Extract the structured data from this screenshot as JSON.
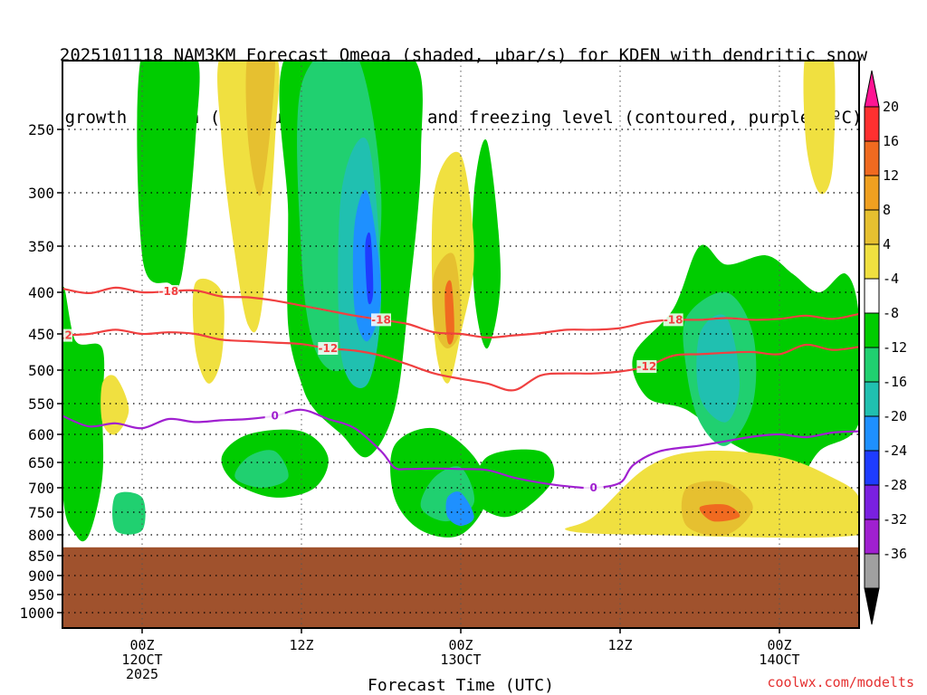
{
  "title_line1": "2025101118 NAM3KM Forecast Omega (shaded, μbar/s) for KDEN with dendritic snow",
  "title_line2": "growth region (contoured, red, ºC) and freezing level (contoured, purple, ºC)",
  "watermark": "coolwx.com/modelts",
  "chart_data": {
    "type": "heatmap",
    "xlabel": "Forecast Time (UTC)",
    "y_ticks": [
      250,
      300,
      350,
      400,
      450,
      500,
      550,
      600,
      650,
      700,
      750,
      800,
      850,
      900,
      950,
      1000
    ],
    "x_ticks": [
      {
        "hour": 6,
        "line1": "00Z",
        "line2": "12OCT",
        "line3": "2025"
      },
      {
        "hour": 18,
        "line1": "12Z",
        "line2": "",
        "line3": ""
      },
      {
        "hour": 30,
        "line1": "00Z",
        "line2": "13OCT",
        "line3": ""
      },
      {
        "hour": 42,
        "line1": "12Z",
        "line2": "",
        "line3": ""
      },
      {
        "hour": 54,
        "line1": "00Z",
        "line2": "14OCT",
        "line3": ""
      }
    ],
    "x_range": [
      0,
      60
    ],
    "y_range_hPa": [
      200,
      1050
    ],
    "colorbar": {
      "labels": [
        "20",
        "16",
        "12",
        "8",
        "4",
        "-4",
        "-8",
        "-12",
        "-16",
        "-20",
        "-24",
        "-28",
        "-32",
        "-36"
      ],
      "colors": [
        "#ff1493",
        "#ff3030",
        "#f06a20",
        "#f0a020",
        "#e6c030",
        "#f0e040",
        "#ffffff",
        "#00cc00",
        "#20d070",
        "#20c0b0",
        "#1e90ff",
        "#1e3cff",
        "#7a20e0",
        "#a020d0",
        "#a0a0a0",
        "#000000"
      ]
    },
    "dgz_top_18": {
      "label": "-18",
      "color": "#f04040",
      "points": [
        [
          0,
          396
        ],
        [
          2,
          401
        ],
        [
          4,
          395
        ],
        [
          6,
          400
        ],
        [
          8,
          399
        ],
        [
          10,
          398
        ],
        [
          12,
          405
        ],
        [
          14,
          406
        ],
        [
          16,
          410
        ],
        [
          18,
          416
        ],
        [
          20,
          422
        ],
        [
          22,
          428
        ],
        [
          24,
          433
        ],
        [
          26,
          438
        ],
        [
          28,
          448
        ],
        [
          30,
          450
        ],
        [
          32,
          455
        ],
        [
          34,
          452
        ],
        [
          36,
          449
        ],
        [
          38,
          445
        ],
        [
          40,
          445
        ],
        [
          42,
          443
        ],
        [
          44,
          436
        ],
        [
          46,
          433
        ],
        [
          48,
          433
        ],
        [
          50,
          431
        ],
        [
          52,
          433
        ],
        [
          54,
          432
        ],
        [
          56,
          428
        ],
        [
          58,
          432
        ],
        [
          60,
          426
        ]
      ]
    },
    "dgz_bottom_12": {
      "label": "-12",
      "color": "#f04040",
      "points": [
        [
          0,
          452
        ],
        [
          2,
          450
        ],
        [
          4,
          445
        ],
        [
          6,
          450
        ],
        [
          8,
          448
        ],
        [
          10,
          450
        ],
        [
          12,
          458
        ],
        [
          14,
          460
        ],
        [
          16,
          462
        ],
        [
          18,
          464
        ],
        [
          20,
          470
        ],
        [
          22,
          473
        ],
        [
          24,
          480
        ],
        [
          26,
          492
        ],
        [
          28,
          505
        ],
        [
          30,
          513
        ],
        [
          32,
          520
        ],
        [
          34,
          530
        ],
        [
          36,
          508
        ],
        [
          38,
          505
        ],
        [
          40,
          505
        ],
        [
          42,
          502
        ],
        [
          44,
          495
        ],
        [
          46,
          480
        ],
        [
          48,
          478
        ],
        [
          50,
          476
        ],
        [
          52,
          475
        ],
        [
          54,
          478
        ],
        [
          56,
          465
        ],
        [
          58,
          472
        ],
        [
          60,
          468
        ]
      ]
    },
    "freezing_level_0": {
      "label": "0",
      "color": "#a020d0",
      "points": [
        [
          0,
          570
        ],
        [
          2,
          587
        ],
        [
          4,
          582
        ],
        [
          6,
          590
        ],
        [
          8,
          575
        ],
        [
          10,
          580
        ],
        [
          12,
          577
        ],
        [
          14,
          575
        ],
        [
          16,
          570
        ],
        [
          18,
          560
        ],
        [
          20,
          575
        ],
        [
          22,
          590
        ],
        [
          24,
          630
        ],
        [
          25,
          660
        ],
        [
          26,
          663
        ],
        [
          28,
          662
        ],
        [
          30,
          663
        ],
        [
          32,
          665
        ],
        [
          34,
          680
        ],
        [
          36,
          690
        ],
        [
          38,
          697
        ],
        [
          40,
          700
        ],
        [
          42,
          690
        ],
        [
          43,
          655
        ],
        [
          45,
          630
        ],
        [
          48,
          620
        ],
        [
          50,
          612
        ],
        [
          52,
          604
        ],
        [
          54,
          600
        ],
        [
          56,
          605
        ],
        [
          58,
          597
        ],
        [
          60,
          595
        ]
      ]
    },
    "omega_regions": [
      {
        "level": -8,
        "color": "#00cc00",
        "points": [
          [
            6,
            200
          ],
          [
            10,
            200
          ],
          [
            10,
            260
          ],
          [
            9,
            380
          ],
          [
            8,
            390
          ],
          [
            6,
            360
          ]
        ]
      },
      {
        "level": -8,
        "color": "#00cc00",
        "points": [
          [
            17,
            200
          ],
          [
            26,
            200
          ],
          [
            27,
            270
          ],
          [
            26,
            420
          ],
          [
            25,
            560
          ],
          [
            23,
            640
          ],
          [
            21,
            600
          ],
          [
            19,
            560
          ],
          [
            18,
            520
          ],
          [
            17,
            440
          ],
          [
            17,
            320
          ]
        ]
      },
      {
        "level": -8,
        "color": "#00cc00",
        "points": [
          [
            14,
            600
          ],
          [
            18,
            595
          ],
          [
            20,
            640
          ],
          [
            19,
            700
          ],
          [
            16,
            720
          ],
          [
            13,
            690
          ],
          [
            12,
            640
          ]
        ]
      },
      {
        "level": -8,
        "color": "#00cc00",
        "points": [
          [
            25,
            620
          ],
          [
            28,
            590
          ],
          [
            31,
            640
          ],
          [
            32,
            720
          ],
          [
            30,
            800
          ],
          [
            27,
            790
          ],
          [
            25,
            720
          ]
        ]
      },
      {
        "level": -8,
        "color": "#00cc00",
        "points": [
          [
            32,
            640
          ],
          [
            36,
            630
          ],
          [
            37,
            680
          ],
          [
            35,
            740
          ],
          [
            33,
            760
          ],
          [
            31,
            720
          ]
        ]
      },
      {
        "level": -8,
        "color": "#00cc00",
        "points": [
          [
            31,
            300
          ],
          [
            32,
            260
          ],
          [
            33,
            380
          ],
          [
            32,
            470
          ],
          [
            31,
            400
          ]
        ]
      },
      {
        "level": -8,
        "color": "#00cc00",
        "points": [
          [
            43,
            480
          ],
          [
            46,
            420
          ],
          [
            48,
            350
          ],
          [
            50,
            370
          ],
          [
            53,
            360
          ],
          [
            55,
            380
          ],
          [
            57,
            400
          ],
          [
            59,
            380
          ],
          [
            60,
            430
          ],
          [
            60,
            580
          ],
          [
            57,
            630
          ],
          [
            55,
            700
          ],
          [
            53,
            650
          ],
          [
            50,
            610
          ],
          [
            47,
            560
          ],
          [
            44,
            540
          ]
        ]
      },
      {
        "level": -8,
        "color": "#00cc00",
        "points": [
          [
            1,
            460
          ],
          [
            3,
            470
          ],
          [
            3,
            560
          ],
          [
            3,
            680
          ],
          [
            2,
            800
          ],
          [
            1,
            800
          ],
          [
            0,
            700
          ],
          [
            0,
            400
          ]
        ]
      },
      {
        "level": -12,
        "color": "#20d070",
        "points": [
          [
            18,
            220
          ],
          [
            22,
            200
          ],
          [
            24,
            300
          ],
          [
            23,
            440
          ],
          [
            21,
            500
          ],
          [
            19,
            470
          ],
          [
            18,
            360
          ]
        ]
      },
      {
        "level": -12,
        "color": "#20d070",
        "points": [
          [
            14,
            640
          ],
          [
            16,
            630
          ],
          [
            17,
            680
          ],
          [
            15,
            700
          ],
          [
            13,
            680
          ]
        ]
      },
      {
        "level": -12,
        "color": "#20d070",
        "points": [
          [
            28,
            680
          ],
          [
            30,
            660
          ],
          [
            31,
            730
          ],
          [
            29,
            770
          ],
          [
            27,
            740
          ]
        ]
      },
      {
        "level": -12,
        "color": "#20d070",
        "points": [
          [
            47,
            430
          ],
          [
            50,
            400
          ],
          [
            52,
            450
          ],
          [
            52,
            550
          ],
          [
            50,
            620
          ],
          [
            48,
            580
          ],
          [
            47,
            500
          ]
        ]
      },
      {
        "level": -12,
        "color": "#20d070",
        "points": [
          [
            4,
            715
          ],
          [
            6,
            720
          ],
          [
            6,
            790
          ],
          [
            4,
            790
          ]
        ]
      },
      {
        "level": -16,
        "color": "#20c0b0",
        "points": [
          [
            21,
            300
          ],
          [
            23,
            260
          ],
          [
            24,
            400
          ],
          [
            23,
            520
          ],
          [
            21,
            480
          ]
        ]
      },
      {
        "level": -16,
        "color": "#20c0b0",
        "points": [
          [
            48,
            450
          ],
          [
            50,
            430
          ],
          [
            51,
            520
          ],
          [
            50,
            580
          ],
          [
            48,
            540
          ]
        ]
      },
      {
        "level": -20,
        "color": "#1e90ff",
        "points": [
          [
            22,
            330
          ],
          [
            23,
            300
          ],
          [
            24,
            400
          ],
          [
            23,
            460
          ],
          [
            22,
            420
          ]
        ]
      },
      {
        "level": -20,
        "color": "#1e90ff",
        "points": [
          [
            29,
            720
          ],
          [
            30,
            710
          ],
          [
            31,
            760
          ],
          [
            30,
            780
          ],
          [
            29,
            760
          ]
        ]
      },
      {
        "level": -24,
        "color": "#1e3cff",
        "points": [
          [
            22.8,
            350
          ],
          [
            23.2,
            340
          ],
          [
            23.4,
            400
          ],
          [
            23,
            410
          ]
        ]
      },
      {
        "level": 4,
        "color": "#f0e040",
        "points": [
          [
            12,
            200
          ],
          [
            16,
            200
          ],
          [
            16,
            260
          ],
          [
            15,
            420
          ],
          [
            14,
            440
          ],
          [
            13,
            360
          ],
          [
            12,
            260
          ]
        ]
      },
      {
        "level": 4,
        "color": "#f0e040",
        "points": [
          [
            10,
            390
          ],
          [
            12,
            400
          ],
          [
            12,
            480
          ],
          [
            11,
            520
          ],
          [
            10,
            470
          ]
        ]
      },
      {
        "level": 4,
        "color": "#f0e040",
        "points": [
          [
            28,
            300
          ],
          [
            30,
            270
          ],
          [
            31,
            360
          ],
          [
            30,
            450
          ],
          [
            29,
            520
          ],
          [
            28,
            450
          ]
        ]
      },
      {
        "level": 4,
        "color": "#f0e040",
        "points": [
          [
            44,
            660
          ],
          [
            48,
            630
          ],
          [
            54,
            640
          ],
          [
            58,
            680
          ],
          [
            60,
            720
          ],
          [
            60,
            800
          ],
          [
            44,
            800
          ],
          [
            38,
            790
          ],
          [
            40,
            760
          ]
        ]
      },
      {
        "level": 4,
        "color": "#f0e040",
        "points": [
          [
            3,
            520
          ],
          [
            4,
            510
          ],
          [
            5,
            560
          ],
          [
            4,
            600
          ],
          [
            3,
            580
          ]
        ]
      },
      {
        "level": 4,
        "color": "#f0e040",
        "points": [
          [
            56,
            200
          ],
          [
            58,
            200
          ],
          [
            58,
            280
          ],
          [
            57,
            300
          ],
          [
            56,
            260
          ]
        ]
      },
      {
        "level": 8,
        "color": "#e6c030",
        "points": [
          [
            14,
            200
          ],
          [
            16,
            200
          ],
          [
            15,
            300
          ],
          [
            14,
            260
          ]
        ]
      },
      {
        "level": 8,
        "color": "#e6c030",
        "points": [
          [
            28,
            380
          ],
          [
            29.5,
            360
          ],
          [
            30,
            440
          ],
          [
            29,
            470
          ],
          [
            28,
            440
          ]
        ]
      },
      {
        "level": 8,
        "color": "#e6c030",
        "points": [
          [
            47,
            700
          ],
          [
            50,
            690
          ],
          [
            52,
            740
          ],
          [
            50,
            800
          ],
          [
            47,
            780
          ]
        ]
      },
      {
        "level": 12,
        "color": "#f06a20",
        "points": [
          [
            28.8,
            400
          ],
          [
            29.3,
            390
          ],
          [
            29.5,
            450
          ],
          [
            29,
            460
          ]
        ]
      },
      {
        "level": 12,
        "color": "#f06a20",
        "points": [
          [
            48,
            740
          ],
          [
            50,
            735
          ],
          [
            51,
            760
          ],
          [
            49,
            770
          ]
        ]
      }
    ],
    "terrain_top_hPa": 830
  }
}
